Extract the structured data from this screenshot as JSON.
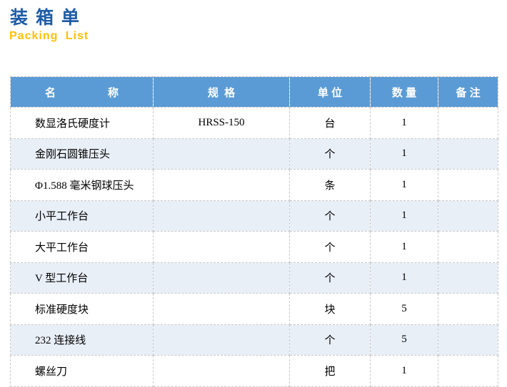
{
  "title": {
    "cn": "装 箱 单",
    "en": "Packing List"
  },
  "colors": {
    "title_blue": "#1E5CA8",
    "subtitle_orange": "#FFC000",
    "header_bg": "#5B9BD5",
    "header_text": "#FFFFFF",
    "row_alt_bg": "#E9EFF7",
    "cell_border": "#C8C8C8",
    "body_text": "#000000"
  },
  "table": {
    "headers": {
      "name": "名 称",
      "spec": "规  格",
      "unit": "单 位",
      "qty": "数 量",
      "remark": "备 注"
    },
    "rows": [
      {
        "name": "数显洛氏硬度计",
        "spec": "HRSS-150",
        "unit": "台",
        "qty": "1",
        "remark": ""
      },
      {
        "name": "金刚石圆锥压头",
        "spec": "",
        "unit": "个",
        "qty": "1",
        "remark": ""
      },
      {
        "name": "Φ1.588 毫米钢球压头",
        "spec": "",
        "unit": "条",
        "qty": "1",
        "remark": ""
      },
      {
        "name": "小平工作台",
        "spec": "",
        "unit": "个",
        "qty": "1",
        "remark": ""
      },
      {
        "name": "大平工作台",
        "spec": "",
        "unit": "个",
        "qty": "1",
        "remark": ""
      },
      {
        "name": "V 型工作台",
        "spec": "",
        "unit": "个",
        "qty": "1",
        "remark": ""
      },
      {
        "name": "标准硬度块",
        "spec": "",
        "unit": "块",
        "qty": "5",
        "remark": ""
      },
      {
        "name": "232 连接线",
        "spec": "",
        "unit": "个",
        "qty": "5",
        "remark": ""
      },
      {
        "name": "螺丝刀",
        "spec": "",
        "unit": "把",
        "qty": "1",
        "remark": ""
      }
    ]
  }
}
